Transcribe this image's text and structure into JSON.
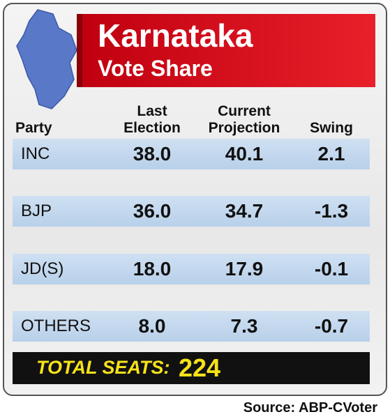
{
  "header": {
    "title": "Karnataka",
    "subtitle": "Vote Share"
  },
  "table": {
    "columns": [
      "Party",
      "Last Election",
      "Current Projection",
      "Swing"
    ],
    "rows": [
      [
        "INC",
        "38.0",
        "40.1",
        "2.1"
      ],
      [
        "BJP",
        "36.0",
        "34.7",
        "-1.3"
      ],
      [
        "JD(S)",
        "18.0",
        "17.9",
        "-0.1"
      ],
      [
        "OTHERS",
        "8.0",
        "7.3",
        "-0.7"
      ]
    ]
  },
  "footer": {
    "total_label": "TOTAL SEATS:",
    "total_value": "224",
    "source": "Source: ABP-CVoter"
  }
}
